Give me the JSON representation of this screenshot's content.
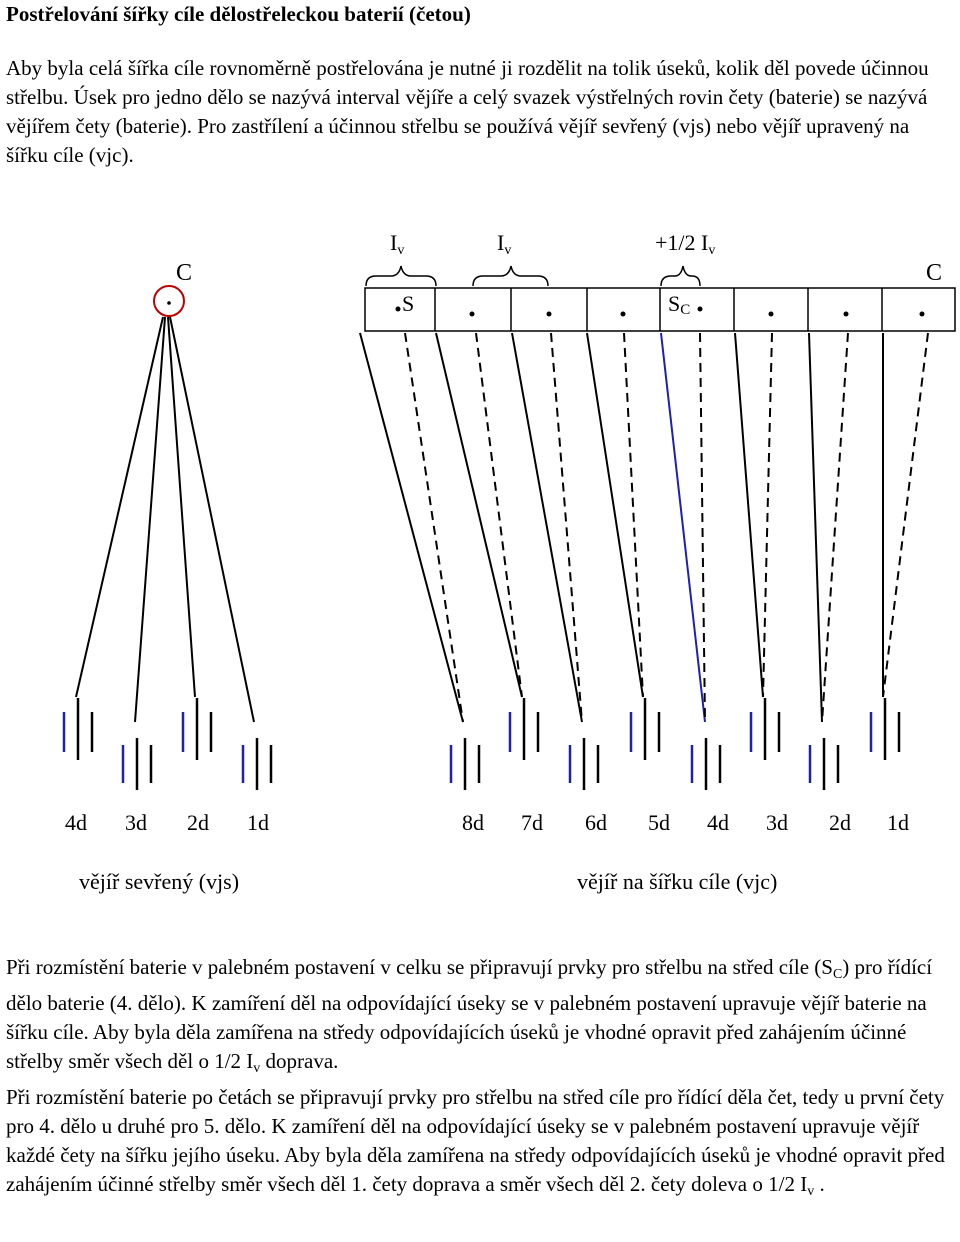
{
  "title": "Postřelování šířky cíle dělostřeleckou baterií (četou)",
  "intro": "Aby byla celá šířka cíle rovnoměrně postřelována je nutné ji rozdělit na tolik úseků, kolik děl povede účinnou střelbu. Úsek pro jedno dělo se nazývá interval vějíře a celý svazek výstřelných rovin čety (baterie) se nazývá vějířem čety (baterie). Pro zastřílení a účinnou střelbu se používá vějíř sevřený (vjs) nebo vějíř upravený na šířku cíle (vjc).",
  "diagram": {
    "left_target_label": "C",
    "right_target_label": "C",
    "interval_base": "I",
    "interval_sub": "v",
    "half_interval_prefix": "+1/2 I",
    "s_label": "S",
    "sc_label": "S",
    "sc_sub": "C",
    "left_guns": [
      "4d",
      "3d",
      "2d",
      "1d"
    ],
    "right_guns": [
      "8d",
      "7d",
      "6d",
      "5d",
      "4d",
      "3d",
      "2d",
      "1d"
    ],
    "left_caption": "vějíř sevřený (vjs)",
    "right_caption": "vějíř na šířku cíle (vjc)",
    "highlight_color": "#1f1fb4"
  },
  "bottom": {
    "p1_a": "Při rozmístění baterie v palebném postavení  v celku se připravují prvky pro střelbu na střed cíle (S",
    "p1_sub": "C",
    "p1_b": ") pro řídící dělo baterie (4. dělo). K zamíření děl na odpovídající úseky se v palebném postavení upravuje vějíř baterie na šířku cíle. Aby byla děla zamířena na středy odpovídajících úseků je vhodné opravit před zahájením účinné střelby směr všech děl o 1/2 I",
    "p1_sub2": "v",
    "p1_c": " doprava.",
    "p2_a": "Při rozmístění baterie po četách se připravují prvky pro střelbu na střed cíle pro řídící děla čet, tedy u první čety pro 4. dělo u druhé pro 5. dělo. K zamíření děl na odpovídající úseky se v palebném postavení upravuje vějíř každé čety na šířku jejího úseku. Aby byla děla zamířena na středy odpovídajících úseků je vhodné opravit před zahájením účinné střelby směr všech děl 1. čety doprava a směr všech děl 2. čety doleva o 1/2 I",
    "p2_sub": "v",
    "p2_c": " ."
  }
}
